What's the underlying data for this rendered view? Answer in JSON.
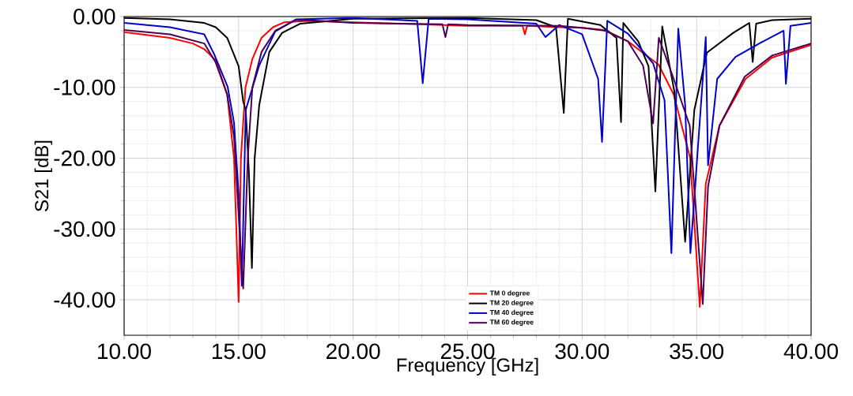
{
  "chart_data": {
    "type": "line",
    "xlabel": "Frequency [GHz]",
    "ylabel": "S21 [dB]",
    "xlim": [
      10,
      40
    ],
    "ylim": [
      -45,
      0
    ],
    "xticks": [
      {
        "value": 10,
        "label": "10.00"
      },
      {
        "value": 15,
        "label": "15.00"
      },
      {
        "value": 20,
        "label": "20.00"
      },
      {
        "value": 25,
        "label": "25.00"
      },
      {
        "value": 30,
        "label": "30.00"
      },
      {
        "value": 35,
        "label": "35.00"
      },
      {
        "value": 40,
        "label": "40.00"
      }
    ],
    "yticks": [
      {
        "value": 0,
        "label": "0.00"
      },
      {
        "value": -10,
        "label": "-10.00"
      },
      {
        "value": -20,
        "label": "-20.00"
      },
      {
        "value": -30,
        "label": "-30.00"
      },
      {
        "value": -40,
        "label": "-40.00"
      }
    ],
    "grid": true,
    "legend": "bottom",
    "marker": "none",
    "line_style": "solid",
    "series": [
      {
        "name": "TM 0 degree",
        "color": "#ff0000",
        "x": [
          10,
          12,
          13,
          13.5,
          14,
          14.5,
          14.8,
          14.95,
          15.0,
          15.1,
          15.3,
          15.6,
          16,
          16.5,
          17,
          18,
          20,
          25,
          27.4,
          27.5,
          27.6,
          29,
          30,
          31,
          32,
          33.34,
          34.0,
          34.72,
          35.14,
          35.4,
          36.0,
          37.14,
          38.3,
          40
        ],
        "values": [
          -2.2,
          -3,
          -3.8,
          -4.6,
          -6.2,
          -11,
          -20,
          -35,
          -40.3,
          -20,
          -10,
          -6,
          -3,
          -1.5,
          -0.8,
          -0.6,
          -0.8,
          -1.3,
          -1.3,
          -2.5,
          -1.3,
          -1.5,
          -1.6,
          -1.9,
          -3.5,
          -6.8,
          -11,
          -20,
          -41,
          -23.6,
          -15.4,
          -8.8,
          -5.8,
          -4.0
        ]
      },
      {
        "name": "TM 20 degree",
        "color": "#000000",
        "x": [
          10,
          12,
          13.5,
          14,
          14.5,
          15,
          15.2,
          15.31,
          15.45,
          15.58,
          15.7,
          15.9,
          16.34,
          16.9,
          17.7,
          20,
          25,
          28,
          28.86,
          29.2,
          29.38,
          30.8,
          31.5,
          31.7,
          31.8,
          32.45,
          32.9,
          33.2,
          33.5,
          34.03,
          34.5,
          34.9,
          35.45,
          36.6,
          37.3,
          37.45,
          37.6,
          38.3,
          40
        ],
        "values": [
          -0.2,
          -0.4,
          -0.9,
          -1.5,
          -3,
          -7,
          -12,
          -13.2,
          -22,
          -35.5,
          -20,
          -12.5,
          -5,
          -2.3,
          -1,
          -0.3,
          -0.2,
          -0.5,
          -1.5,
          -13.6,
          -0.3,
          -1.2,
          -3,
          -14.9,
          -0.9,
          -3.5,
          -7,
          -24.7,
          -1.4,
          -10.6,
          -31.8,
          -13.2,
          -5.1,
          -2.3,
          -0.9,
          -6.4,
          -1,
          -0.5,
          -0.3
        ]
      },
      {
        "name": "TM 40 degree",
        "color": "#0000cc",
        "x": [
          10,
          12,
          13.5,
          13.93,
          14.52,
          14.8,
          15.0,
          15.14,
          15.31,
          15.9,
          16.6,
          17.5,
          20,
          22.8,
          23.04,
          23.3,
          25,
          28,
          28.4,
          29,
          30,
          30.7,
          30.87,
          31.1,
          32.0,
          33.1,
          33.6,
          33.9,
          34.2,
          34.5,
          34.73,
          35.4,
          35.5,
          35.9,
          36.7,
          37.8,
          38.8,
          38.9,
          39.1,
          40
        ],
        "values": [
          -0.9,
          -1.5,
          -2.5,
          -5.3,
          -9.9,
          -15,
          -25,
          -38,
          -13.2,
          -6.9,
          -2.1,
          -0.4,
          -0.2,
          -0.6,
          -9.4,
          -0.3,
          -0.4,
          -1,
          -2.9,
          -1.2,
          -2.5,
          -8.8,
          -17.7,
          -0.6,
          -2.4,
          -6.6,
          -11.8,
          -33.4,
          -1.7,
          -12.5,
          -33.4,
          -2.9,
          -21,
          -8.8,
          -5.7,
          -3.7,
          -2.0,
          -9.5,
          -1.3,
          -0.9
        ]
      },
      {
        "name": "TM 60 degree",
        "color": "#4b0055",
        "x": [
          10,
          12,
          13.5,
          14,
          14.5,
          14.8,
          15.0,
          15.2,
          15.4,
          15.6,
          16,
          16.6,
          17.5,
          18,
          20,
          23.9,
          24.03,
          24.15,
          25,
          29,
          30,
          31,
          32,
          32.66,
          33.1,
          33.35,
          34.0,
          34.7,
          35.27,
          35.5,
          36.0,
          37.1,
          38.3,
          40
        ],
        "values": [
          -1.9,
          -2.5,
          -3.8,
          -6.5,
          -11,
          -17,
          -28,
          -38.4,
          -20,
          -10,
          -5,
          -2,
          -0.5,
          -0.5,
          -0.9,
          -1.1,
          -2.9,
          -1.1,
          -1.2,
          -1.3,
          -1.6,
          -2,
          -3.5,
          -6.9,
          -15.1,
          -3.0,
          -8.8,
          -15.4,
          -40.6,
          -24,
          -15.4,
          -8.5,
          -5.5,
          -3.8
        ]
      }
    ]
  }
}
